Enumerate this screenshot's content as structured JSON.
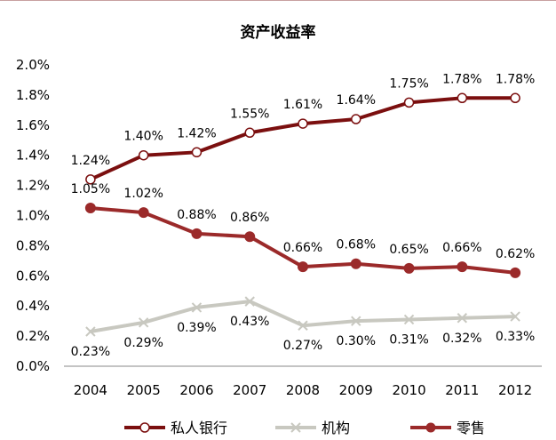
{
  "chart_data": {
    "type": "line",
    "title": "资产收益率",
    "xlabel": "",
    "ylabel": "",
    "categories": [
      "2004",
      "2005",
      "2006",
      "2007",
      "2008",
      "2009",
      "2010",
      "2011",
      "2012"
    ],
    "ylim": [
      0,
      2.0
    ],
    "yticks": [
      "0.0%",
      "0.2%",
      "0.4%",
      "0.6%",
      "0.8%",
      "1.0%",
      "1.2%",
      "1.4%",
      "1.6%",
      "1.8%",
      "2.0%"
    ],
    "grid": false,
    "legend": "bottom",
    "series": [
      {
        "name": "私人银行",
        "color": "#7b0f0f",
        "marker": "hollow-circle",
        "values": [
          1.24,
          1.4,
          1.42,
          1.55,
          1.61,
          1.64,
          1.75,
          1.78,
          1.78
        ],
        "labels": [
          "1.24%",
          "1.40%",
          "1.42%",
          "1.55%",
          "1.61%",
          "1.64%",
          "1.75%",
          "1.78%",
          "1.78%"
        ]
      },
      {
        "name": "机构",
        "color": "#c8c8c0",
        "marker": "x",
        "values": [
          0.23,
          0.29,
          0.39,
          0.43,
          0.27,
          0.3,
          0.31,
          0.32,
          0.33
        ],
        "labels": [
          "0.23%",
          "0.29%",
          "0.39%",
          "0.43%",
          "0.27%",
          "0.30%",
          "0.31%",
          "0.32%",
          "0.33%"
        ]
      },
      {
        "name": "零售",
        "color": "#9b2a2a",
        "marker": "filled-circle",
        "values": [
          1.05,
          1.02,
          0.88,
          0.86,
          0.66,
          0.68,
          0.65,
          0.66,
          0.62
        ],
        "labels": [
          "1.05%",
          "1.02%",
          "0.88%",
          "0.86%",
          "0.66%",
          "0.68%",
          "0.65%",
          "0.66%",
          "0.62%"
        ]
      }
    ]
  }
}
